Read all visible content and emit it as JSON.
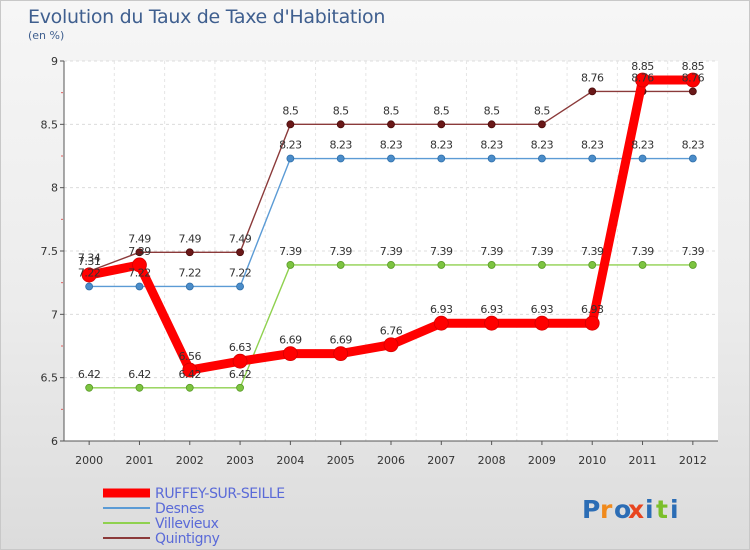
{
  "chart_data": {
    "type": "line",
    "title": "Evolution du Taux de Taxe d'Habitation",
    "subtitle": "(en %)",
    "xlabel": "",
    "ylabel": "",
    "x": [
      "2000",
      "2001",
      "2002",
      "2003",
      "2004",
      "2005",
      "2006",
      "2007",
      "2008",
      "2009",
      "2010",
      "2011",
      "2012"
    ],
    "ylim": [
      6,
      9
    ],
    "yticks": [
      "6",
      "6.5",
      "7",
      "7.5",
      "8",
      "8.5",
      "9"
    ],
    "grid": true,
    "legend_position": "bottom-left",
    "series": [
      {
        "name": "RUFFEY-SUR-SEILLE",
        "color": "#ff0000",
        "values": [
          7.31,
          7.39,
          6.56,
          6.63,
          6.69,
          6.69,
          6.76,
          6.93,
          6.93,
          6.93,
          6.93,
          8.85,
          8.85
        ],
        "labels": [
          "7.31",
          "7.39",
          "6.56",
          "6.63",
          "6.69",
          "6.69",
          "6.76",
          "6.93",
          "6.93",
          "6.93",
          "6.93",
          "8.85",
          "8.85"
        ]
      },
      {
        "name": "Desnes",
        "color": "#5b9bd5",
        "values": [
          7.22,
          7.22,
          7.22,
          7.22,
          8.23,
          8.23,
          8.23,
          8.23,
          8.23,
          8.23,
          8.23,
          8.23,
          8.23
        ],
        "labels": [
          "7.22",
          "7.22",
          "7.22",
          "7.22",
          "8.23",
          "8.23",
          "8.23",
          "8.23",
          "8.23",
          "8.23",
          "8.23",
          "8.23",
          "8.23"
        ]
      },
      {
        "name": "Villevieux",
        "color": "#8fd14f",
        "values": [
          6.42,
          6.42,
          6.42,
          6.42,
          7.39,
          7.39,
          7.39,
          7.39,
          7.39,
          7.39,
          7.39,
          7.39,
          7.39
        ],
        "labels": [
          "6.42",
          "6.42",
          "6.42",
          "6.42",
          "7.39",
          "7.39",
          "7.39",
          "7.39",
          "7.39",
          "7.39",
          "7.39",
          "7.39",
          "7.39"
        ]
      },
      {
        "name": "Quintigny",
        "color": "#8b3a3a",
        "values": [
          7.34,
          7.49,
          7.49,
          7.49,
          8.5,
          8.5,
          8.5,
          8.5,
          8.5,
          8.5,
          8.76,
          8.76,
          8.76
        ],
        "labels": [
          "7.34",
          "7.49",
          "7.49",
          "7.49",
          "8.5",
          "8.5",
          "8.5",
          "8.5",
          "8.5",
          "8.5",
          "8.76",
          "8.76",
          "8.76"
        ]
      }
    ]
  },
  "brand": {
    "letters": [
      "P",
      "r",
      "o",
      "x",
      "i",
      "t",
      "i"
    ],
    "colors": [
      "#2c6db5",
      "#f08a1c",
      "#2c6db5",
      "#e8451f",
      "#2c6db5",
      "#7bbf2a",
      "#2c6db5"
    ]
  }
}
